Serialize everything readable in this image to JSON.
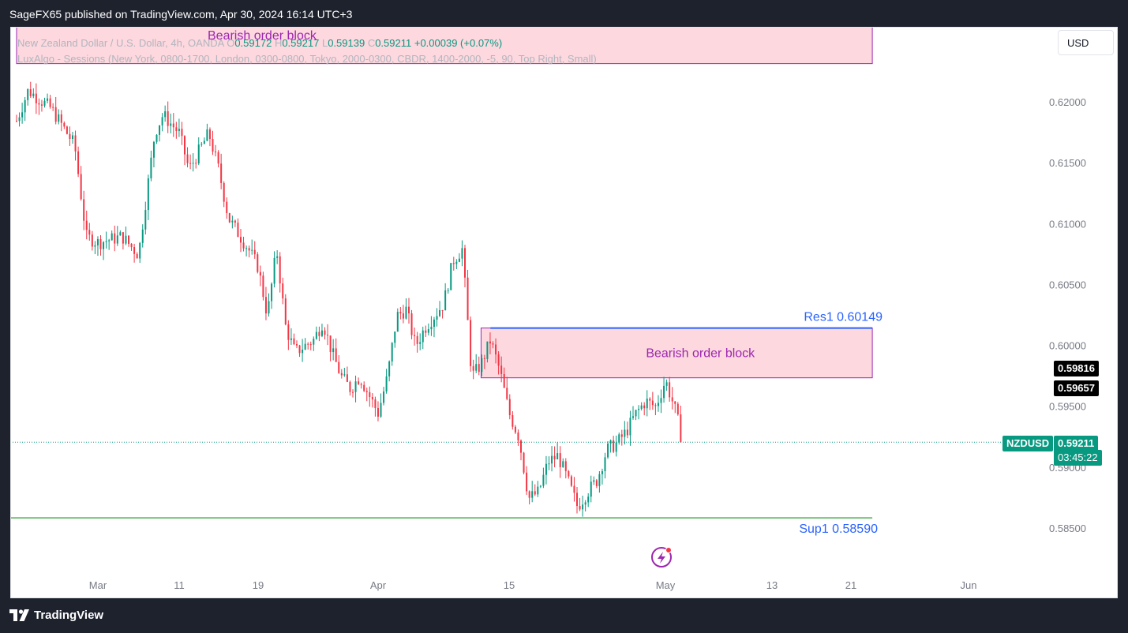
{
  "header": {
    "publisher": "SageFX65 published on TradingView.com, Apr 30, 2024 16:14 UTC+3"
  },
  "legend": {
    "symbol": "New Zealand Dollar / U.S. Dollar, 4h, OANDA",
    "o_label": "O",
    "o_value": "0.59172",
    "h_label": "H",
    "h_value": "0.59217",
    "l_label": "L",
    "l_value": "0.59139",
    "c_label": "C",
    "c_value": "0.59211",
    "change": "+0.00039 (+0.07%)",
    "indicator": "LuxAlgo - Sessions (New York, 0800-1700, London, 0300-0800, Tokyo, 2000-0300, CBDR, 1400-2000, -5, 90, Top Right, Small)"
  },
  "currency_button": "USD",
  "price_labels": {
    "level_a": "0.59816",
    "level_b": "0.59657",
    "symbol_tag": "NZDUSD",
    "last_price": "0.59211",
    "countdown": "03:45:22"
  },
  "colors": {
    "up": "#089981",
    "down": "#f23645",
    "zone_fill": "#fdd8df",
    "zone_border": "#9c27b0",
    "zone_text": "#9c27b0",
    "res_line": "#2962ff",
    "sup_line": "#4caf50",
    "level_text": "#2962ff"
  },
  "footer": {
    "brand": "TradingView"
  },
  "chart_data": {
    "type": "candlestick",
    "title": "New Zealand Dollar / U.S. Dollar, 4h, OANDA",
    "ylim": [
      0.5825,
      0.6315
    ],
    "y_ticks": [
      "0.62000",
      "0.61500",
      "0.61000",
      "0.60500",
      "0.60000",
      "0.59500",
      "0.59000",
      "0.58500"
    ],
    "y_tick_values": [
      0.62,
      0.615,
      0.61,
      0.605,
      0.6,
      0.595,
      0.59,
      0.585
    ],
    "x_ticks": [
      "Mar",
      "11",
      "19",
      "Apr",
      "15",
      "May",
      "13",
      "21",
      "Jun"
    ],
    "x_tick_dates": [
      "2024-03-01",
      "2024-03-11",
      "2024-03-19",
      "2024-04-01",
      "2024-04-15",
      "2024-05-01",
      "2024-05-13",
      "2024-05-21",
      "2024-06-01"
    ],
    "last_price": 0.59211,
    "price_levels": [
      0.59816,
      0.59657
    ],
    "levels": [
      {
        "label": "Res1 0.60149",
        "price": 0.60149
      },
      {
        "label": "Sup1 0.58590",
        "price": 0.5859
      }
    ],
    "zones": [
      {
        "label": "Bearish order block",
        "top": 0.60149,
        "bottom": 0.5974,
        "start": "2024-04-12",
        "end": "2024-05-23"
      },
      {
        "label": "Bearish order block",
        "top": 0.6315,
        "bottom": 0.6232,
        "start": "2024-02-23",
        "end": "2024-05-23"
      }
    ],
    "swing_path": [
      [
        "2024-02-23",
        0.6185
      ],
      [
        "2024-02-24",
        0.621
      ],
      [
        "2024-02-26",
        0.6195
      ],
      [
        "2024-02-28",
        0.6165
      ],
      [
        "2024-02-29",
        0.609
      ],
      [
        "2024-03-01",
        0.6085
      ],
      [
        "2024-03-04",
        0.609
      ],
      [
        "2024-03-06",
        0.6075
      ],
      [
        "2024-03-07",
        0.6125
      ],
      [
        "2024-03-08",
        0.6175
      ],
      [
        "2024-03-09",
        0.619
      ],
      [
        "2024-03-11",
        0.6175
      ],
      [
        "2024-03-12",
        0.6145
      ],
      [
        "2024-03-13",
        0.616
      ],
      [
        "2024-03-14",
        0.6175
      ],
      [
        "2024-03-15",
        0.6145
      ],
      [
        "2024-03-16",
        0.6105
      ],
      [
        "2024-03-18",
        0.608
      ],
      [
        "2024-03-19",
        0.6065
      ],
      [
        "2024-03-20",
        0.6025
      ],
      [
        "2024-03-21",
        0.608
      ],
      [
        "2024-03-22",
        0.6015
      ],
      [
        "2024-03-23",
        0.5995
      ],
      [
        "2024-03-25",
        0.6005
      ],
      [
        "2024-03-26",
        0.602
      ],
      [
        "2024-03-27",
        0.5995
      ],
      [
        "2024-03-28",
        0.5975
      ],
      [
        "2024-03-29",
        0.5965
      ],
      [
        "2024-03-30",
        0.5975
      ],
      [
        "2024-03-31",
        0.596
      ],
      [
        "2024-04-01",
        0.5945
      ],
      [
        "2024-04-02",
        0.5975
      ],
      [
        "2024-04-03",
        0.6025
      ],
      [
        "2024-04-04",
        0.603
      ],
      [
        "2024-04-05",
        0.6
      ],
      [
        "2024-04-06",
        0.6015
      ],
      [
        "2024-04-08",
        0.6035
      ],
      [
        "2024-04-09",
        0.607
      ],
      [
        "2024-04-10",
        0.608
      ],
      [
        "2024-04-11",
        0.5975
      ],
      [
        "2024-04-12",
        0.5985
      ],
      [
        "2024-04-13",
        0.6005
      ],
      [
        "2024-04-14",
        0.598
      ],
      [
        "2024-04-15",
        0.5945
      ],
      [
        "2024-04-16",
        0.5925
      ],
      [
        "2024-04-17",
        0.5875
      ],
      [
        "2024-04-18",
        0.588
      ],
      [
        "2024-04-19",
        0.5905
      ],
      [
        "2024-04-20",
        0.591
      ],
      [
        "2024-04-21",
        0.589
      ],
      [
        "2024-04-22",
        0.5868
      ],
      [
        "2024-04-23",
        0.588
      ],
      [
        "2024-04-24",
        0.589
      ],
      [
        "2024-04-25",
        0.5915
      ],
      [
        "2024-04-26",
        0.592
      ],
      [
        "2024-04-27",
        0.593
      ],
      [
        "2024-04-28",
        0.5945
      ],
      [
        "2024-04-29",
        0.5955
      ],
      [
        "2024-04-30",
        0.595
      ],
      [
        "2024-05-01",
        0.5972
      ],
      [
        "2024-05-02",
        0.595
      ],
      [
        "2024-05-03",
        0.5921
      ]
    ]
  }
}
